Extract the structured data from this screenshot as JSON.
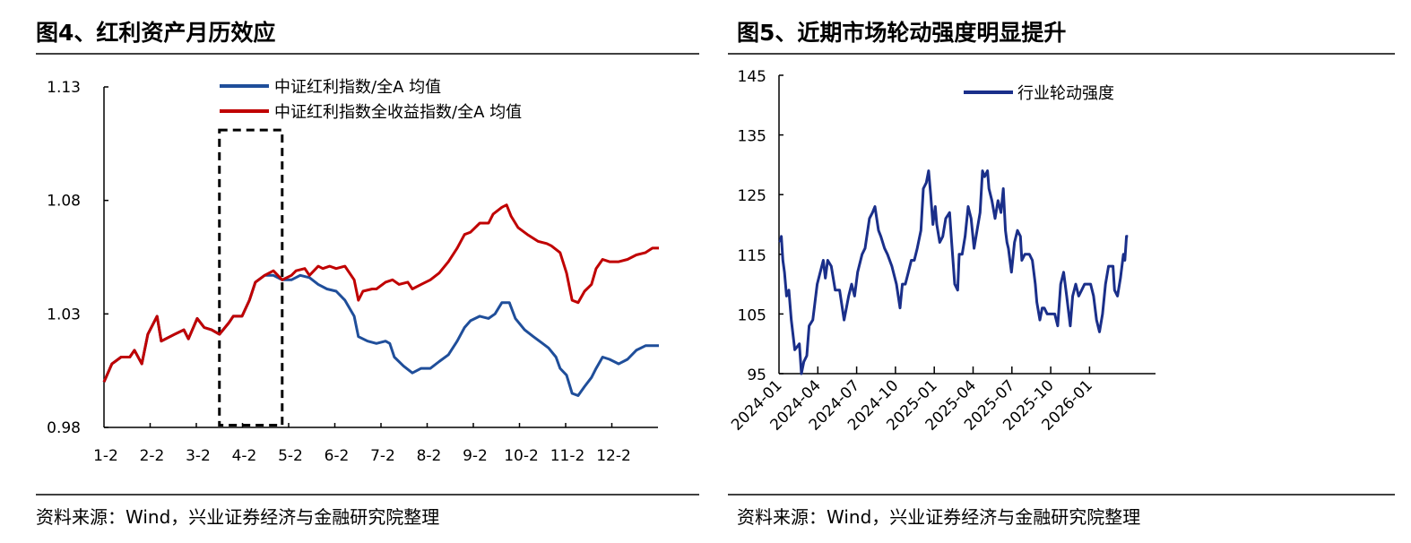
{
  "left": {
    "title": "图4、红利资产月历效应",
    "source": "资料来源：Wind，兴业证券经济与金融研究院整理"
  },
  "right": {
    "title": "图5、近期市场轮动强度明显提升",
    "source": "资料来源：Wind，兴业证券经济与金融研究院整理"
  },
  "chart_data": [
    {
      "type": "line",
      "title": "图4、红利资产月历效应",
      "xlabel": "",
      "ylabel": "",
      "xlim": [
        0,
        12
      ],
      "ylim": [
        0.98,
        1.13
      ],
      "yticks": [
        "0.98",
        "1.03",
        "1.08",
        "1.13"
      ],
      "ytick_values": [
        0.98,
        1.03,
        1.08,
        1.13
      ],
      "categories": [
        "1-2",
        "2-2",
        "3-2",
        "4-2",
        "5-2",
        "6-2",
        "7-2",
        "8-2",
        "9-2",
        "10-2",
        "11-2",
        "12-2"
      ],
      "legend_position": "top",
      "highlight_box": {
        "x_range": [
          2.5,
          3.86
        ],
        "y_range": [
          0.981,
          1.111
        ],
        "style": "dashed"
      },
      "series": [
        {
          "name": "中证红利指数/全A 均值",
          "color": "#1f4e9a",
          "points": [
            [
              0,
              1.0
            ],
            [
              0.17,
              1.008
            ],
            [
              0.37,
              1.011
            ],
            [
              0.56,
              1.011
            ],
            [
              0.66,
              1.014
            ],
            [
              0.82,
              1.008
            ],
            [
              0.95,
              1.021
            ],
            [
              1.15,
              1.029
            ],
            [
              1.24,
              1.018
            ],
            [
              1.53,
              1.021
            ],
            [
              1.73,
              1.023
            ],
            [
              1.83,
              1.019
            ],
            [
              2.02,
              1.028
            ],
            [
              2.17,
              1.024
            ],
            [
              2.33,
              1.023
            ],
            [
              2.5,
              1.021
            ],
            [
              2.7,
              1.026
            ],
            [
              2.8,
              1.029
            ],
            [
              2.99,
              1.029
            ],
            [
              3.15,
              1.036
            ],
            [
              3.28,
              1.044
            ],
            [
              3.48,
              1.047
            ],
            [
              3.67,
              1.047
            ],
            [
              3.86,
              1.045
            ],
            [
              4.06,
              1.045
            ],
            [
              4.25,
              1.047
            ],
            [
              4.45,
              1.046
            ],
            [
              4.64,
              1.043
            ],
            [
              4.83,
              1.041
            ],
            [
              5.03,
              1.04
            ],
            [
              5.22,
              1.036
            ],
            [
              5.42,
              1.029
            ],
            [
              5.51,
              1.02
            ],
            [
              5.71,
              1.018
            ],
            [
              5.9,
              1.017
            ],
            [
              6.1,
              1.018
            ],
            [
              6.19,
              1.017
            ],
            [
              6.29,
              1.011
            ],
            [
              6.49,
              1.007
            ],
            [
              6.68,
              1.004
            ],
            [
              6.87,
              1.006
            ],
            [
              7.07,
              1.006
            ],
            [
              7.26,
              1.009
            ],
            [
              7.46,
              1.012
            ],
            [
              7.65,
              1.018
            ],
            [
              7.81,
              1.024
            ],
            [
              7.94,
              1.027
            ],
            [
              8.14,
              1.029
            ],
            [
              8.33,
              1.028
            ],
            [
              8.47,
              1.03
            ],
            [
              8.62,
              1.035
            ],
            [
              8.78,
              1.035
            ],
            [
              8.91,
              1.028
            ],
            [
              9.11,
              1.023
            ],
            [
              9.3,
              1.02
            ],
            [
              9.5,
              1.017
            ],
            [
              9.63,
              1.015
            ],
            [
              9.79,
              1.011
            ],
            [
              9.88,
              1.006
            ],
            [
              10.02,
              1.003
            ],
            [
              10.14,
              0.995
            ],
            [
              10.27,
              0.994
            ],
            [
              10.41,
              0.998
            ],
            [
              10.56,
              1.002
            ],
            [
              10.66,
              1.006
            ],
            [
              10.8,
              1.011
            ],
            [
              10.95,
              1.01
            ],
            [
              11.15,
              1.008
            ],
            [
              11.34,
              1.01
            ],
            [
              11.53,
              1.014
            ],
            [
              11.73,
              1.016
            ],
            [
              11.88,
              1.016
            ],
            [
              12.02,
              1.016
            ]
          ]
        },
        {
          "name": "中证红利指数全收益指数/全A 均值",
          "color": "#c00000",
          "points": [
            [
              0,
              1.0
            ],
            [
              0.17,
              1.008
            ],
            [
              0.37,
              1.011
            ],
            [
              0.56,
              1.011
            ],
            [
              0.66,
              1.014
            ],
            [
              0.82,
              1.008
            ],
            [
              0.95,
              1.021
            ],
            [
              1.15,
              1.029
            ],
            [
              1.24,
              1.018
            ],
            [
              1.53,
              1.021
            ],
            [
              1.73,
              1.023
            ],
            [
              1.83,
              1.019
            ],
            [
              2.02,
              1.028
            ],
            [
              2.17,
              1.024
            ],
            [
              2.33,
              1.023
            ],
            [
              2.5,
              1.021
            ],
            [
              2.7,
              1.026
            ],
            [
              2.8,
              1.029
            ],
            [
              2.99,
              1.029
            ],
            [
              3.15,
              1.036
            ],
            [
              3.28,
              1.044
            ],
            [
              3.48,
              1.047
            ],
            [
              3.67,
              1.049
            ],
            [
              3.86,
              1.045
            ],
            [
              4.06,
              1.047
            ],
            [
              4.16,
              1.049
            ],
            [
              4.35,
              1.05
            ],
            [
              4.45,
              1.047
            ],
            [
              4.64,
              1.051
            ],
            [
              4.74,
              1.05
            ],
            [
              4.89,
              1.051
            ],
            [
              5.03,
              1.05
            ],
            [
              5.22,
              1.051
            ],
            [
              5.42,
              1.045
            ],
            [
              5.51,
              1.036
            ],
            [
              5.61,
              1.04
            ],
            [
              5.81,
              1.041
            ],
            [
              5.9,
              1.041
            ],
            [
              6.1,
              1.044
            ],
            [
              6.25,
              1.045
            ],
            [
              6.39,
              1.043
            ],
            [
              6.58,
              1.044
            ],
            [
              6.68,
              1.041
            ],
            [
              6.87,
              1.043
            ],
            [
              7.07,
              1.045
            ],
            [
              7.26,
              1.048
            ],
            [
              7.46,
              1.053
            ],
            [
              7.65,
              1.059
            ],
            [
              7.81,
              1.065
            ],
            [
              7.94,
              1.066
            ],
            [
              8.14,
              1.07
            ],
            [
              8.33,
              1.07
            ],
            [
              8.43,
              1.074
            ],
            [
              8.62,
              1.077
            ],
            [
              8.72,
              1.078
            ],
            [
              8.82,
              1.073
            ],
            [
              8.97,
              1.068
            ],
            [
              9.17,
              1.065
            ],
            [
              9.4,
              1.062
            ],
            [
              9.59,
              1.061
            ],
            [
              9.69,
              1.06
            ],
            [
              9.88,
              1.057
            ],
            [
              10.02,
              1.048
            ],
            [
              10.14,
              1.036
            ],
            [
              10.27,
              1.035
            ],
            [
              10.41,
              1.04
            ],
            [
              10.56,
              1.043
            ],
            [
              10.66,
              1.05
            ],
            [
              10.8,
              1.054
            ],
            [
              10.95,
              1.053
            ],
            [
              11.15,
              1.053
            ],
            [
              11.34,
              1.054
            ],
            [
              11.53,
              1.056
            ],
            [
              11.73,
              1.057
            ],
            [
              11.88,
              1.059
            ],
            [
              12.02,
              1.059
            ]
          ]
        }
      ]
    },
    {
      "type": "line",
      "title": "图5、近期市场轮动强度明显提升",
      "xlabel": "",
      "ylabel": "",
      "xlim": [
        0,
        27
      ],
      "ylim": [
        95,
        145
      ],
      "yticks": [
        "95",
        "105",
        "115",
        "125",
        "135",
        "145"
      ],
      "ytick_values": [
        95,
        105,
        115,
        125,
        135,
        145
      ],
      "categories": [
        "2024-01",
        "2024-04",
        "2024-07",
        "2024-10",
        "2025-01",
        "2025-04",
        "2025-07",
        "2025-10",
        "2026-01"
      ],
      "x_unit": "months since 2024-01",
      "legend_position": "top",
      "series": [
        {
          "name": "行业轮动强度",
          "color": "#1a2f8a",
          "x": [
            0.07,
            0.18,
            0.3,
            0.42,
            0.58,
            0.76,
            0.95,
            1.22,
            1.57,
            1.73,
            1.92,
            2.15,
            2.33,
            2.61,
            2.95,
            3.42,
            3.58,
            3.76,
            4.04,
            4.34,
            4.68,
            5.03,
            5.38,
            5.61,
            5.84,
            6.07,
            6.42,
            6.65,
            6.99,
            7.22,
            7.41,
            7.69,
            7.87,
            8.15,
            8.38,
            8.72,
            9.07,
            9.35,
            9.53,
            9.76,
            9.99,
            10.22,
            10.45,
            10.68,
            10.96,
            11.15,
            11.38,
            11.56,
            11.72,
            11.89,
            12.07,
            12.19,
            12.42,
            12.65,
            12.88,
            13.18,
            13.34,
            13.57,
            13.8,
            13.92,
            14.15,
            14.38,
            14.61,
            14.84,
            15.07,
            15.3,
            15.53,
            15.72,
            15.88,
            16.11,
            16.22,
            16.45,
            16.69,
            16.92,
            17.15,
            17.33,
            17.49,
            17.61,
            17.72,
            17.96,
            18.19,
            18.42,
            18.65,
            18.76,
            18.99,
            19.34,
            19.57,
            19.8,
            19.92,
            20.15,
            20.33,
            20.49,
            20.72,
            20.96,
            21.3,
            21.53,
            21.76,
            21.99,
            22.22,
            22.5,
            22.69,
            22.92,
            23.15,
            23.38,
            23.61,
            23.84,
            24.07,
            24.3,
            24.53,
            24.76,
            24.99,
            25.22,
            25.46,
            25.8,
            25.92,
            26.15,
            26.38,
            26.61,
            26.72,
            26.84,
            26.96
          ],
          "y": [
            117,
            118,
            114,
            112,
            108,
            109,
            104,
            99,
            100,
            95,
            97,
            98,
            103,
            104,
            110,
            114,
            111,
            114,
            113,
            109,
            109,
            104,
            108,
            110,
            108,
            112,
            115,
            116,
            121,
            122,
            123,
            119,
            118,
            116,
            115,
            113,
            110,
            106,
            110,
            110,
            112,
            114,
            114,
            116,
            119,
            126,
            127,
            129,
            125,
            120,
            123,
            120,
            117,
            118,
            121,
            122,
            117,
            110,
            109,
            115,
            115,
            118,
            123,
            121,
            116,
            119,
            122,
            129,
            128,
            129,
            126,
            124,
            121,
            124,
            122,
            126,
            119,
            117,
            116,
            112,
            117,
            119,
            118,
            114,
            115,
            115,
            114,
            110,
            107,
            104,
            106,
            106,
            105,
            105,
            105,
            103,
            110,
            112,
            108,
            103,
            108,
            110,
            108,
            109,
            110,
            110,
            110,
            108,
            104,
            102,
            105,
            110,
            113,
            113,
            109,
            108,
            111,
            115,
            114,
            118,
            118
          ]
        }
      ]
    }
  ]
}
